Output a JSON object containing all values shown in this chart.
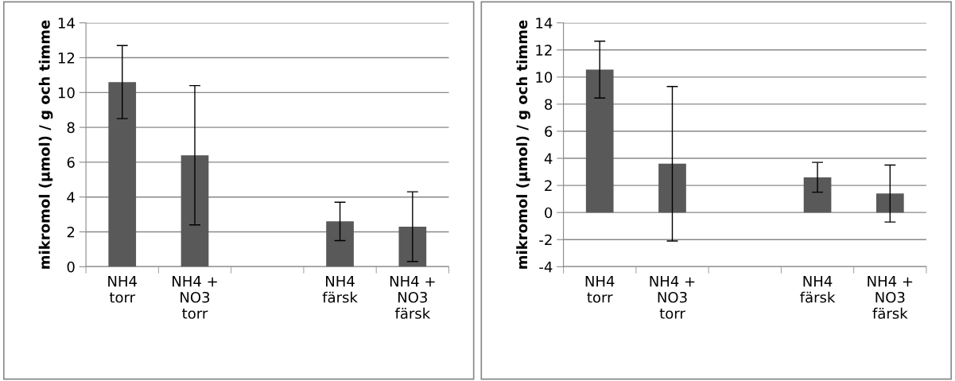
{
  "chart_data": [
    {
      "type": "bar",
      "ylabel": "mikromol (µmol) / g och timme",
      "categories": [
        "NH4\ntorr",
        "NH4 +\nNO3\ntorr",
        null,
        "NH4\nfärsk",
        "NH4 +\nNO3\nfärsk"
      ],
      "series": [
        {
          "color": "#595959",
          "values": [
            10.6,
            6.4,
            null,
            2.6,
            2.3
          ],
          "errors": [
            2.1,
            4.0,
            null,
            1.1,
            2.0
          ]
        }
      ],
      "ylim": [
        0,
        14
      ],
      "yticks": [
        0,
        2,
        4,
        6,
        8,
        10,
        12,
        14
      ],
      "grid": "y"
    },
    {
      "type": "bar",
      "ylabel": "mikromol (µmol) / g och timme",
      "categories": [
        "NH4\ntorr",
        "NH4 +\nNO3\ntorr",
        null,
        "NH4\nfärsk",
        "NH4 +\nNO3\nfärsk"
      ],
      "series": [
        {
          "color": "#595959",
          "values": [
            10.55,
            3.6,
            null,
            2.6,
            1.4
          ],
          "errors": [
            2.1,
            5.7,
            null,
            1.1,
            2.1
          ]
        }
      ],
      "ylim": [
        -4,
        14
      ],
      "yticks": [
        -4,
        -2,
        0,
        2,
        4,
        6,
        8,
        10,
        12,
        14
      ],
      "grid": "y"
    }
  ]
}
